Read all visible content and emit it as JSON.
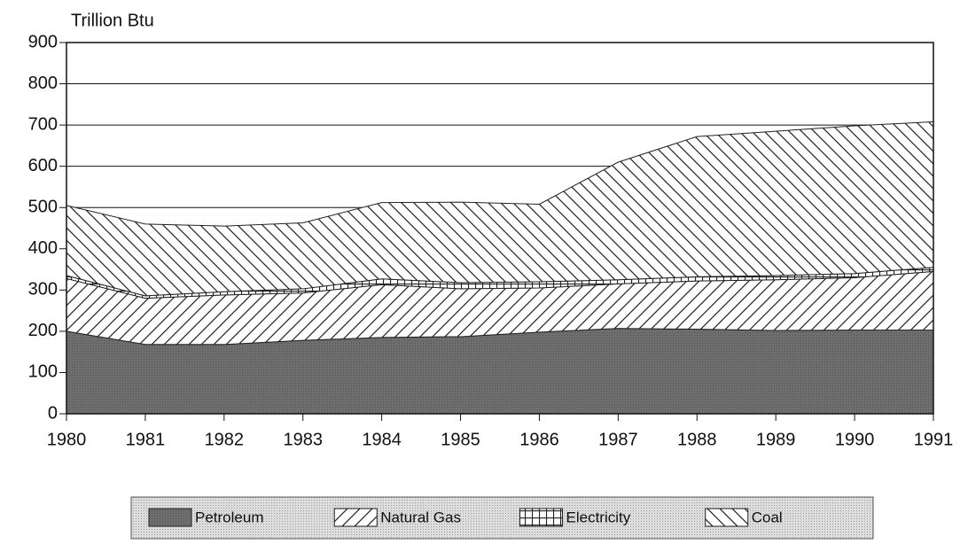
{
  "chart_data": {
    "type": "stacked-area",
    "y_label": "Trillion Btu",
    "x": [
      1980,
      1981,
      1982,
      1983,
      1984,
      1985,
      1986,
      1987,
      1988,
      1989,
      1990,
      1991
    ],
    "xlim": [
      1980,
      1991
    ],
    "xticks": [
      1980,
      1981,
      1982,
      1983,
      1984,
      1985,
      1986,
      1987,
      1988,
      1989,
      1990,
      1991
    ],
    "ylim": [
      0,
      900
    ],
    "yticks": [
      0,
      100,
      200,
      300,
      400,
      500,
      600,
      700,
      800,
      900
    ],
    "grid": true,
    "legend": "bottom",
    "series": [
      {
        "name": "Petroleum",
        "color": "#6e6e6e",
        "pattern": "solid",
        "values": [
          200,
          168,
          168,
          178,
          185,
          187,
          198,
          207,
          205,
          202,
          203,
          203
        ]
      },
      {
        "name": "Natural Gas",
        "color": "#ffffff",
        "pattern": "forward-hatch",
        "values": [
          128,
          112,
          120,
          115,
          128,
          116,
          107,
          108,
          117,
          123,
          127,
          142
        ]
      },
      {
        "name": "Electricity",
        "color": "#ffffff",
        "pattern": "grid",
        "values": [
          7,
          6,
          8,
          10,
          14,
          15,
          15,
          10,
          10,
          10,
          10,
          10
        ]
      },
      {
        "name": "Coal",
        "color": "#ffffff",
        "pattern": "back-hatch",
        "values": [
          170,
          174,
          159,
          160,
          185,
          195,
          188,
          285,
          340,
          350,
          358,
          353
        ]
      }
    ]
  }
}
